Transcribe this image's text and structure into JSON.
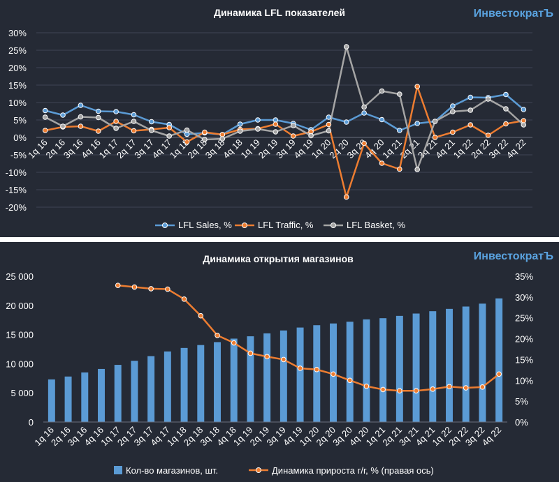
{
  "brand": "ИнвестократЪ",
  "colors": {
    "background": "#252a35",
    "sales": "#5b9bd5",
    "traffic": "#ed7d31",
    "basket": "#a5a5a5",
    "bars": "#5b9bd5",
    "growth": "#ed7d31"
  },
  "chart_data": [
    {
      "type": "line",
      "title": "Динамика LFL показателей",
      "categories": [
        "1q 16",
        "2q 16",
        "3q 16",
        "4q 16",
        "1q 17",
        "2q 17",
        "3q 17",
        "4q 17",
        "1q 18",
        "2q 18",
        "3q 18",
        "4q 18",
        "1q 19",
        "2q 19",
        "3q 19",
        "4q 19",
        "1q 20",
        "2q 20",
        "3q 20",
        "4q 20",
        "1q 21",
        "2q 21",
        "3q 21",
        "4q 21",
        "1q 22",
        "2q 22",
        "3q 22",
        "4q 22"
      ],
      "y_ticks": [
        "30%",
        "25%",
        "20%",
        "15%",
        "10%",
        "5%",
        "0%",
        "-5%",
        "-10%",
        "-15%",
        "-20%"
      ],
      "ylim": [
        -20,
        30
      ],
      "legend_position": "bottom",
      "series": [
        {
          "name": "LFL Sales, %",
          "values": [
            7.7,
            6.4,
            9.2,
            7.5,
            7.4,
            6.5,
            4.5,
            3.7,
            0.9,
            1.3,
            0.8,
            3.8,
            5.0,
            5.0,
            4.0,
            2.2,
            5.8,
            4.4,
            7.0,
            5.1,
            2.0,
            4.0,
            4.6,
            9.0,
            11.5,
            11.4,
            12.3,
            8.0
          ]
        },
        {
          "name": "LFL Traffic, %",
          "values": [
            2.0,
            3.0,
            3.2,
            1.8,
            4.6,
            1.9,
            2.3,
            2.8,
            -1.3,
            1.5,
            0.8,
            2.3,
            2.5,
            3.8,
            0.4,
            1.6,
            3.7,
            -17.1,
            -1.7,
            -7.4,
            -9.1,
            14.6,
            0.0,
            1.5,
            3.6,
            0.6,
            3.9,
            4.8
          ]
        },
        {
          "name": "LFL Basket, %",
          "values": [
            5.8,
            3.2,
            5.9,
            5.7,
            2.6,
            4.6,
            2.0,
            0.4,
            2.1,
            -0.6,
            -0.4,
            1.8,
            2.4,
            1.6,
            3.4,
            0.5,
            1.9,
            26.0,
            8.7,
            13.3,
            12.4,
            -9.2,
            4.6,
            7.4,
            7.8,
            11.0,
            8.2,
            3.6
          ]
        }
      ]
    },
    {
      "type": "bar",
      "title": "Динамика открытия магазинов",
      "categories": [
        "1q 16",
        "2q 16",
        "3q 16",
        "4q 16",
        "1q 17",
        "2q 17",
        "3q 17",
        "4q 17",
        "1q 18",
        "2q 18",
        "3q 18",
        "4q 18",
        "1q 19",
        "2q 19",
        "3q 19",
        "4q 19",
        "1q 20",
        "2q 20",
        "3q 20",
        "4q 20",
        "1q 21",
        "2q 21",
        "3q 21",
        "4q 21",
        "1q 22",
        "2q 22",
        "3q 22",
        "4q 22"
      ],
      "y_left_ticks": [
        "25 000",
        "20 000",
        "15 000",
        "10 000",
        "5 000",
        "0"
      ],
      "y_right_ticks": [
        "35%",
        "30%",
        "25%",
        "20%",
        "15%",
        "10%",
        "5%",
        "0%"
      ],
      "ylim_left": [
        0,
        25000
      ],
      "ylim_right": [
        0,
        35
      ],
      "legend_position": "bottom",
      "series": [
        {
          "name": "Кол-во магазинов, шт.",
          "axis": "left",
          "kind": "bar",
          "values": [
            7300,
            7800,
            8500,
            9100,
            9800,
            10500,
            11300,
            12100,
            12700,
            13200,
            13700,
            14300,
            14700,
            15200,
            15700,
            16200,
            16600,
            16900,
            17200,
            17600,
            17800,
            18200,
            18600,
            19000,
            19400,
            19800,
            20300,
            21200
          ]
        },
        {
          "name": "Динамика прироста г/г, % (правая ось)",
          "axis": "right",
          "kind": "line",
          "values": [
            null,
            null,
            null,
            null,
            32.8,
            32.4,
            32.0,
            31.9,
            29.5,
            25.5,
            20.8,
            19.0,
            16.5,
            15.7,
            15.0,
            12.9,
            12.6,
            11.5,
            10.0,
            8.6,
            7.8,
            7.5,
            7.5,
            7.9,
            8.5,
            8.2,
            8.4,
            11.5
          ]
        }
      ]
    }
  ]
}
